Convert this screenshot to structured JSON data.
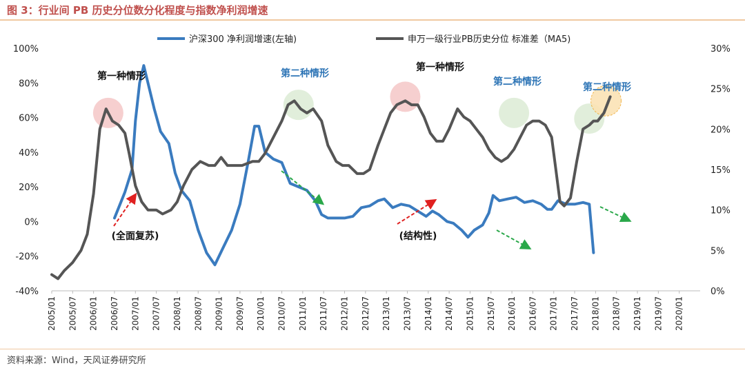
{
  "title": "图 3：行业间 PB 历史分位数分化程度与指数净利润增速",
  "source": "资料来源：Wind，天风证券研究所",
  "chart_data": {
    "type": "line",
    "x_ticks": [
      "2005/01",
      "2005/07",
      "2006/01",
      "2006/07",
      "2007/01",
      "2007/07",
      "2008/01",
      "2008/07",
      "2009/01",
      "2009/07",
      "2010/01",
      "2010/07",
      "2011/01",
      "2011/07",
      "2012/01",
      "2012/07",
      "2013/01",
      "2013/07",
      "2014/01",
      "2014/07",
      "2015/01",
      "2015/07",
      "2016/01",
      "2016/07",
      "2017/01",
      "2017/07",
      "2018/01",
      "2018/07",
      "2019/01",
      "2019/07",
      "2020/01"
    ],
    "y_left": {
      "ticks": [
        "100%",
        "80%",
        "60%",
        "40%",
        "20%",
        "0%",
        "-20%",
        "-40%"
      ],
      "min": -40,
      "max": 100
    },
    "y_right": {
      "ticks": [
        "30%",
        "25%",
        "20%",
        "15%",
        "10%",
        "5%",
        "0%"
      ],
      "min": 0,
      "max": 30
    },
    "series": [
      {
        "name": "沪深300 净利润增速(左轴)",
        "axis": "left",
        "color": "#3a7bbf",
        "points": [
          [
            2006.5,
            2
          ],
          [
            2006.75,
            17
          ],
          [
            2006.92,
            30
          ],
          [
            2007.0,
            58
          ],
          [
            2007.1,
            80
          ],
          [
            2007.2,
            90
          ],
          [
            2007.3,
            80
          ],
          [
            2007.45,
            65
          ],
          [
            2007.6,
            52
          ],
          [
            2007.8,
            45
          ],
          [
            2007.95,
            28
          ],
          [
            2008.1,
            18
          ],
          [
            2008.3,
            12
          ],
          [
            2008.5,
            -5
          ],
          [
            2008.7,
            -18
          ],
          [
            2008.9,
            -25
          ],
          [
            2009.1,
            -15
          ],
          [
            2009.3,
            -5
          ],
          [
            2009.5,
            10
          ],
          [
            2009.7,
            35
          ],
          [
            2009.85,
            55
          ],
          [
            2009.95,
            55
          ],
          [
            2010.1,
            40
          ],
          [
            2010.3,
            36
          ],
          [
            2010.5,
            34
          ],
          [
            2010.7,
            22
          ],
          [
            2010.9,
            20
          ],
          [
            2011.1,
            18
          ],
          [
            2011.3,
            12
          ],
          [
            2011.45,
            4
          ],
          [
            2011.6,
            2
          ],
          [
            2011.8,
            2
          ],
          [
            2012.0,
            2
          ],
          [
            2012.2,
            3
          ],
          [
            2012.4,
            8
          ],
          [
            2012.6,
            9
          ],
          [
            2012.8,
            12
          ],
          [
            2012.95,
            13
          ],
          [
            2013.15,
            8
          ],
          [
            2013.35,
            10
          ],
          [
            2013.55,
            9
          ],
          [
            2013.75,
            6
          ],
          [
            2013.95,
            3
          ],
          [
            2014.1,
            6
          ],
          [
            2014.25,
            4
          ],
          [
            2014.45,
            0
          ],
          [
            2014.6,
            -1
          ],
          [
            2014.8,
            -5
          ],
          [
            2014.95,
            -9
          ],
          [
            2015.1,
            -5
          ],
          [
            2015.3,
            -2
          ],
          [
            2015.45,
            5
          ],
          [
            2015.55,
            15
          ],
          [
            2015.7,
            12
          ],
          [
            2015.9,
            13
          ],
          [
            2016.1,
            14
          ],
          [
            2016.3,
            11
          ],
          [
            2016.5,
            12
          ],
          [
            2016.7,
            10
          ],
          [
            2016.85,
            7
          ],
          [
            2016.95,
            7
          ],
          [
            2017.1,
            12
          ],
          [
            2017.3,
            10
          ],
          [
            2017.5,
            10
          ],
          [
            2017.7,
            11
          ],
          [
            2017.85,
            10
          ],
          [
            2017.95,
            -18
          ]
        ]
      },
      {
        "name": "申万一级行业PB历史分位 标准差（MA5)",
        "axis": "right",
        "color": "#555555",
        "points": [
          [
            2005.0,
            2
          ],
          [
            2005.15,
            1.5
          ],
          [
            2005.3,
            2.5
          ],
          [
            2005.5,
            3.5
          ],
          [
            2005.7,
            5
          ],
          [
            2005.85,
            7
          ],
          [
            2006.0,
            12
          ],
          [
            2006.15,
            20
          ],
          [
            2006.3,
            22.5
          ],
          [
            2006.45,
            21
          ],
          [
            2006.6,
            20.5
          ],
          [
            2006.75,
            19.5
          ],
          [
            2006.85,
            17
          ],
          [
            2007.0,
            13
          ],
          [
            2007.15,
            11
          ],
          [
            2007.3,
            10
          ],
          [
            2007.5,
            10
          ],
          [
            2007.65,
            9.5
          ],
          [
            2007.85,
            10
          ],
          [
            2008.0,
            11
          ],
          [
            2008.15,
            13
          ],
          [
            2008.35,
            15
          ],
          [
            2008.55,
            16
          ],
          [
            2008.75,
            15.5
          ],
          [
            2008.9,
            15.5
          ],
          [
            2009.05,
            16.5
          ],
          [
            2009.2,
            15.5
          ],
          [
            2009.35,
            15.5
          ],
          [
            2009.55,
            15.5
          ],
          [
            2009.8,
            16
          ],
          [
            2009.95,
            16
          ],
          [
            2010.1,
            17
          ],
          [
            2010.3,
            19
          ],
          [
            2010.5,
            21
          ],
          [
            2010.65,
            23
          ],
          [
            2010.8,
            23.5
          ],
          [
            2010.95,
            22.5
          ],
          [
            2011.1,
            22
          ],
          [
            2011.25,
            22.5
          ],
          [
            2011.45,
            21
          ],
          [
            2011.6,
            18
          ],
          [
            2011.8,
            16
          ],
          [
            2011.95,
            15.5
          ],
          [
            2012.1,
            15.5
          ],
          [
            2012.3,
            14.5
          ],
          [
            2012.45,
            14.5
          ],
          [
            2012.6,
            15
          ],
          [
            2012.8,
            18
          ],
          [
            2012.95,
            20
          ],
          [
            2013.1,
            22
          ],
          [
            2013.25,
            23
          ],
          [
            2013.45,
            23.5
          ],
          [
            2013.6,
            23
          ],
          [
            2013.75,
            23
          ],
          [
            2013.9,
            21.5
          ],
          [
            2014.05,
            19.5
          ],
          [
            2014.2,
            18.5
          ],
          [
            2014.35,
            18.5
          ],
          [
            2014.5,
            20
          ],
          [
            2014.7,
            22.5
          ],
          [
            2014.85,
            21.5
          ],
          [
            2015.0,
            21
          ],
          [
            2015.15,
            20
          ],
          [
            2015.3,
            19
          ],
          [
            2015.45,
            17.5
          ],
          [
            2015.6,
            16.5
          ],
          [
            2015.75,
            16
          ],
          [
            2015.9,
            16.5
          ],
          [
            2016.05,
            17.5
          ],
          [
            2016.2,
            19
          ],
          [
            2016.35,
            20.5
          ],
          [
            2016.5,
            21
          ],
          [
            2016.65,
            21
          ],
          [
            2016.8,
            20.5
          ],
          [
            2016.95,
            19
          ],
          [
            2017.05,
            15
          ],
          [
            2017.15,
            11
          ],
          [
            2017.25,
            10.5
          ],
          [
            2017.4,
            11.5
          ],
          [
            2017.55,
            16
          ],
          [
            2017.7,
            20
          ],
          [
            2017.85,
            20.5
          ],
          [
            2017.95,
            21
          ],
          [
            2018.05,
            21
          ],
          [
            2018.2,
            22
          ],
          [
            2018.35,
            24
          ]
        ]
      }
    ],
    "annotations": [
      {
        "text": "第一种情形",
        "color": "#111111"
      },
      {
        "text": "第二种情形",
        "color": "#2e75b6"
      },
      {
        "text": "第一种情形",
        "color": "#111111"
      },
      {
        "text": "第二种情形",
        "color": "#2e75b6"
      },
      {
        "text": "第二种情形",
        "color": "#2e75b6"
      },
      {
        "text": "(全面复苏)",
        "color": "#111111"
      },
      {
        "text": "(结构性)",
        "color": "#111111"
      }
    ],
    "legend_placement": "top",
    "grid": false
  }
}
